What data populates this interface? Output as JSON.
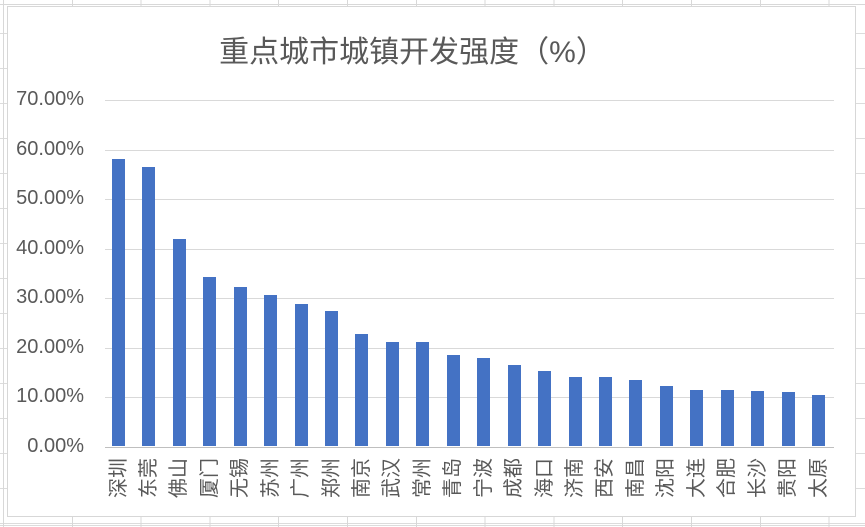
{
  "sheet": {
    "gridline_color": "#d8d8d8"
  },
  "chart": {
    "background": "#ffffff",
    "border_color": "#d7d7d7"
  },
  "chart_data": {
    "type": "bar",
    "title": "重点城市城镇开发强度（%）",
    "categories": [
      "深圳",
      "东莞",
      "佛山",
      "厦门",
      "无锡",
      "苏州",
      "广州",
      "郑州",
      "南京",
      "武汉",
      "常州",
      "青岛",
      "宁波",
      "成都",
      "海口",
      "济南",
      "西安",
      "南昌",
      "沈阳",
      "大连",
      "合肥",
      "长沙",
      "贵阳",
      "太原"
    ],
    "values": [
      57.9,
      56.2,
      41.8,
      34.0,
      32.1,
      30.4,
      28.7,
      27.3,
      22.5,
      21.0,
      20.9,
      18.4,
      17.7,
      16.4,
      15.2,
      14.0,
      13.9,
      13.4,
      12.1,
      11.3,
      11.3,
      11.0,
      10.9,
      10.3
    ],
    "value_unit": "%",
    "xlabel": "",
    "ylabel": "",
    "ylim": [
      0,
      70
    ],
    "y_ticks": [
      "0.00%",
      "10.00%",
      "20.00%",
      "30.00%",
      "40.00%",
      "50.00%",
      "60.00%",
      "70.00%"
    ],
    "grid": true,
    "legend": "none",
    "bar_color": "#4472C4",
    "text_color": "#595959",
    "gridline_color": "#D9D9D9",
    "axis_line_color": "#BFBFBF",
    "category_label_rotation_deg": -90
  }
}
